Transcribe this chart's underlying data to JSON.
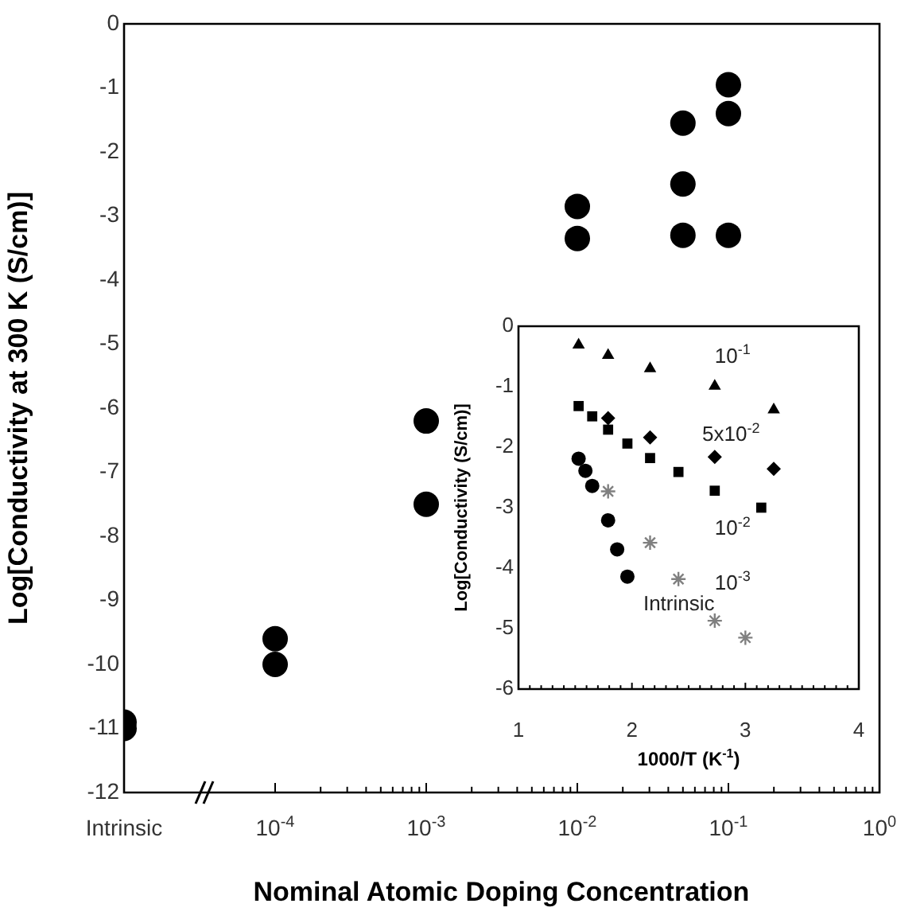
{
  "chart_data": [
    {
      "type": "scatter",
      "xlabel": "Nominal Atomic Doping Concentration",
      "ylabel": "Log[Conductivity at 300 K (S/cm)]",
      "log": "x",
      "marker": "circle",
      "grid": false,
      "legend": false,
      "x": [
        1e-05,
        1e-05,
        0.0001,
        0.0001,
        0.001,
        0.001,
        0.01,
        0.01,
        0.05,
        0.05,
        0.05,
        0.1,
        0.1,
        0.1
      ],
      "series": [
        {
          "color": "#000000",
          "values": [
            -10.9,
            -11.0,
            -9.6,
            -10.0,
            -6.2,
            -7.5,
            -2.85,
            -3.35,
            -1.55,
            -2.5,
            -3.3,
            -0.95,
            -1.4,
            -3.3
          ]
        }
      ],
      "xlim": [
        1e-05,
        1
      ],
      "xticks": [
        {
          "value": 1e-05,
          "label": "Intrinsic"
        },
        {
          "value": 0.0001,
          "label": "10$^{-4}$"
        },
        {
          "value": 0.0002,
          "label": null
        },
        {
          "value": 0.0003,
          "label": null
        },
        {
          "value": 0.0004,
          "label": null
        },
        {
          "value": 0.0005,
          "label": null
        },
        {
          "value": 0.0006,
          "label": null
        },
        {
          "value": 0.0007,
          "label": null
        },
        {
          "value": 0.0008,
          "label": null
        },
        {
          "value": 0.0009,
          "label": null
        },
        {
          "value": 0.001,
          "label": "10$^{-3}$"
        },
        {
          "value": 0.002,
          "label": null
        },
        {
          "value": 0.003,
          "label": null
        },
        {
          "value": 0.004,
          "label": null
        },
        {
          "value": 0.005,
          "label": null
        },
        {
          "value": 0.006,
          "label": null
        },
        {
          "value": 0.007,
          "label": null
        },
        {
          "value": 0.008,
          "label": null
        },
        {
          "value": 0.009,
          "label": null
        },
        {
          "value": 0.01,
          "label": "10$^{-2}$"
        },
        {
          "value": 0.02,
          "label": null
        },
        {
          "value": 0.03,
          "label": null
        },
        {
          "value": 0.04,
          "label": null
        },
        {
          "value": 0.05,
          "label": null
        },
        {
          "value": 0.06,
          "label": null
        },
        {
          "value": 0.07,
          "label": null
        },
        {
          "value": 0.08,
          "label": null
        },
        {
          "value": 0.09,
          "label": null
        },
        {
          "value": 0.1,
          "label": "10$^{-1}$"
        },
        {
          "value": 0.2,
          "label": null
        },
        {
          "value": 0.3,
          "label": null
        },
        {
          "value": 0.4,
          "label": null
        },
        {
          "value": 0.5,
          "label": null
        },
        {
          "value": 0.6,
          "label": null
        },
        {
          "value": 0.7,
          "label": null
        },
        {
          "value": 0.8,
          "label": null
        },
        {
          "value": 0.9,
          "label": null
        },
        {
          "value": 1,
          "label": "10$^{0}$"
        }
      ],
      "ylim": [
        -12,
        0
      ],
      "yticks": [
        -12,
        -11,
        -10,
        -9,
        -8,
        -7,
        -6,
        -5,
        -4,
        -3,
        -2,
        -1,
        0
      ]
    },
    {
      "type": "scatter",
      "xlabel": "1000/T (K$^{-1}$)",
      "ylabel": "Log[Conductivity (S/cm)]",
      "grid": false,
      "legend": false,
      "series": [
        {
          "name": "10$^{-1}$",
          "color": "#000000",
          "marker": "triangle",
          "x": [
            1.53,
            1.79,
            2.16,
            2.73,
            3.25
          ],
          "values": [
            -0.31,
            -0.48,
            -0.7,
            -0.99,
            -1.38
          ]
        },
        {
          "name": "5x10$^{-2}$",
          "color": "#000000",
          "marker": "diamond",
          "x": [
            1.79,
            2.16,
            2.73,
            3.25
          ],
          "values": [
            -1.52,
            -1.84,
            -2.16,
            -2.36
          ]
        },
        {
          "name": "10$^{-2}$",
          "color": "#000000",
          "marker": "square",
          "x": [
            1.53,
            1.65,
            1.79,
            1.96,
            2.16,
            2.41,
            2.73,
            3.14
          ],
          "values": [
            -1.32,
            -1.49,
            -1.71,
            -1.94,
            -2.18,
            -2.41,
            -2.72,
            -3.0
          ]
        },
        {
          "name": "10$^{-3}$",
          "color": "#808080",
          "marker": "cross",
          "x": [
            1.79,
            2.16,
            2.41,
            2.73,
            3.0
          ],
          "values": [
            -2.73,
            -3.58,
            -4.18,
            -4.87,
            -5.15
          ]
        },
        {
          "name": "Intrinsic",
          "color": "#000000",
          "marker": "circle",
          "x": [
            1.53,
            1.59,
            1.65,
            1.79,
            1.87,
            1.96
          ],
          "values": [
            -2.19,
            -2.39,
            -2.64,
            -3.21,
            -3.69,
            -4.14
          ]
        }
      ],
      "xlim": [
        1,
        4
      ],
      "xticks": [
        1,
        {
          "value": 1.1,
          "label": null
        },
        {
          "value": 1.2,
          "label": null
        },
        {
          "value": 1.3,
          "label": null
        },
        {
          "value": 1.4,
          "label": null
        },
        {
          "value": 1.5,
          "label": null
        },
        {
          "value": 1.6,
          "label": null
        },
        {
          "value": 1.7,
          "label": null
        },
        {
          "value": 1.8,
          "label": null
        },
        {
          "value": 1.9,
          "label": null
        },
        2,
        {
          "value": 2.1,
          "label": null
        },
        {
          "value": 2.2,
          "label": null
        },
        {
          "value": 2.3,
          "label": null
        },
        {
          "value": 2.4,
          "label": null
        },
        {
          "value": 2.5,
          "label": null
        },
        {
          "value": 2.6,
          "label": null
        },
        {
          "value": 2.7,
          "label": null
        },
        {
          "value": 2.8,
          "label": null
        },
        {
          "value": 2.9,
          "label": null
        },
        3,
        {
          "value": 3.1,
          "label": null
        },
        {
          "value": 3.2,
          "label": null
        },
        {
          "value": 3.3,
          "label": null
        },
        {
          "value": 3.4,
          "label": null
        },
        {
          "value": 3.5,
          "label": null
        },
        {
          "value": 3.6,
          "label": null
        },
        {
          "value": 3.7,
          "label": null
        },
        {
          "value": 3.8,
          "label": null
        },
        {
          "value": 3.9,
          "label": null
        },
        4
      ],
      "ylim": [
        -6,
        0
      ],
      "yticks": [
        -6,
        -5,
        -4,
        -3,
        -2,
        -1,
        0
      ]
    }
  ]
}
